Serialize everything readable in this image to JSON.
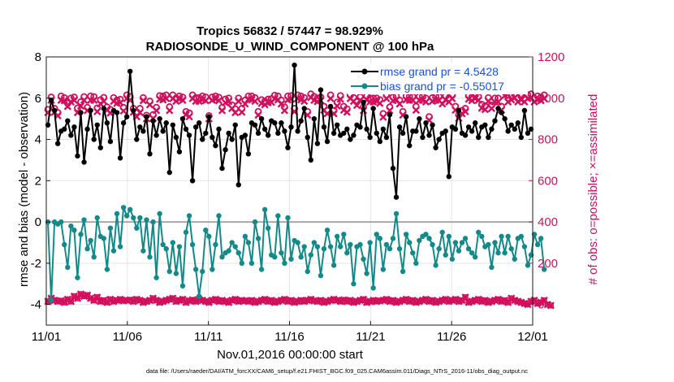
{
  "chart_data": {
    "type": "line",
    "title_line1": "Tropics 56832 / 57447 = 98.929%",
    "title_line2": "RADIOSONDE_U_WIND_COMPONENT @ 100 hPa",
    "xlabel": "Nov.01,2016 00:00:00 start",
    "ylabel_left": "rmse and bias (model - observation)",
    "ylabel_right": "# of obs: o=possible; ×=assimilated",
    "footer": "data file: /Users/raeder/DAI/ATM_forcXX/CAM6_setup/f.e21.FHIST_BGC.f09_025.CAM6assim.011/Diags_NTrS_2016-11/obs_diag_output.nc",
    "x_range": [
      0,
      30
    ],
    "xticks": [
      0,
      5,
      10,
      15,
      20,
      25,
      30
    ],
    "xtick_labels": [
      "11/01",
      "11/06",
      "11/11",
      "11/16",
      "11/21",
      "11/26",
      "12/01"
    ],
    "ylim_left": [
      -5,
      8
    ],
    "yticks_left": [
      -4,
      -2,
      0,
      2,
      4,
      6,
      8
    ],
    "ytick_labels_left": [
      "-4",
      "-2",
      "0",
      "2",
      "4",
      "6",
      "8"
    ],
    "ylim_right": [
      -100,
      1200
    ],
    "yticks_right": [
      0,
      200,
      400,
      600,
      800,
      1000,
      1200
    ],
    "ytick_labels_right": [
      "0",
      "200",
      "400",
      "600",
      "800",
      "1000",
      "1200"
    ],
    "legend": {
      "position": "top-right",
      "rmse": "rmse grand pr = 4.5428",
      "bias": "bias grand pr = -0.55017"
    },
    "colors": {
      "rmse": "#000000",
      "bias": "#138a8a",
      "obs": "#d10f5d",
      "zero_line": "#a8a8a8",
      "legend_text": "#1a4fe0"
    },
    "rmse": [
      4.7,
      5.9,
      5.4,
      3.8,
      4.4,
      4.5,
      4.9,
      4.2,
      4.6,
      3.2,
      5.3,
      2.9,
      4.5,
      5.4,
      4.0,
      4.7,
      3.6,
      5.5,
      4.8,
      3.9,
      5.4,
      5.3,
      3.1,
      4.8,
      5.1,
      7.3,
      5.4,
      4.0,
      4.6,
      4.4,
      5.1,
      3.3,
      4.9,
      4.2,
      5.0,
      4.4,
      4.8,
      2.4,
      4.7,
      4.1,
      3.4,
      5.0,
      4.5,
      4.2,
      2.0,
      4.6,
      4.8,
      4.0,
      4.3,
      5.1,
      4.1,
      3.7,
      4.5,
      2.6,
      3.5,
      4.3,
      4.0,
      4.7,
      1.8,
      4.1,
      4.2,
      3.3,
      4.8,
      4.7,
      4.3,
      5.0,
      4.5,
      4.2,
      4.9,
      4.8,
      4.3,
      4.8,
      4.4,
      3.6,
      4.6,
      7.6,
      4.4,
      4.9,
      5.5,
      4.1,
      3.0,
      5.0,
      3.8,
      6.4,
      4.6,
      3.9,
      5.6,
      4.3,
      4.7,
      4.2,
      4.3,
      4.5,
      4.0,
      4.2,
      4.7,
      4.6,
      5.8,
      4.5,
      4.1,
      5.5,
      4.3,
      3.9,
      4.5,
      4.1,
      5.2,
      2.6,
      1.2,
      4.6,
      4.3,
      5.1,
      3.7,
      4.4,
      4.4,
      5.0,
      4.1,
      4.8,
      4.2,
      4.7,
      3.6,
      4.0,
      4.3,
      4.4,
      2.2,
      4.6,
      4.5,
      5.4,
      4.3,
      4.2,
      4.6,
      4.4,
      4.8,
      4.1,
      4.6,
      4.7,
      4.1,
      4.5,
      4.9,
      5.5,
      5.3,
      5.0,
      4.4,
      4.7,
      4.5,
      4.8,
      4.1,
      5.4,
      4.3,
      4.5
    ],
    "bias": [
      0.0,
      -3.8,
      0.0,
      -0.1,
      0.0,
      -1.1,
      -2.2,
      -0.2,
      -0.4,
      -2.7,
      -0.6,
      0.1,
      -1.3,
      -0.9,
      -1.7,
      0.2,
      -0.7,
      -0.8,
      -2.3,
      -0.3,
      -1.4,
      0.4,
      -1.2,
      0.7,
      0.3,
      0.6,
      0.2,
      -0.3,
      0.2,
      -1.4,
      0.1,
      -1.7,
      0.0,
      -2.7,
      0.4,
      -1.1,
      -1.3,
      -2.4,
      -1.0,
      -2.5,
      -1.2,
      -3.1,
      -0.5,
      0.3,
      -1.1,
      -2.3,
      -3.6,
      -2.4,
      -0.4,
      -0.7,
      -2.3,
      -1.1,
      0.3,
      -1.7,
      -1.5,
      -1.4,
      -1.0,
      -1.2,
      -1.5,
      -2.0,
      -0.7,
      -1.0,
      -2.0,
      0.0,
      -0.8,
      -2.3,
      0.6,
      -0.3,
      -1.6,
      -1.7,
      0.3,
      -1.5,
      -2.0,
      0.2,
      -1.8,
      -0.9,
      -1.0,
      -1.7,
      -1.2,
      -2.4,
      -1.6,
      -1.0,
      -1.2,
      -2.6,
      -1.3,
      -0.4,
      -1.2,
      -2.1,
      -0.7,
      -1.2,
      -0.6,
      -1.5,
      -1.1,
      -3.0,
      -1.2,
      -1.1,
      -1.8,
      -2.5,
      -1.0,
      -3.2,
      -0.6,
      -0.8,
      -2.3,
      -1.1,
      -1.3,
      -0.8,
      0.4,
      -1.3,
      -2.4,
      -0.6,
      -1.0,
      -1.5,
      -2.0,
      -0.9,
      -0.7,
      -0.6,
      -0.8,
      -1.1,
      -2.1,
      -1.3,
      -0.5,
      -1.6,
      -0.7,
      -1.8,
      -1.0,
      -1.4,
      -1.0,
      -0.8,
      -1.3,
      -1.5,
      -1.7,
      -0.5,
      -0.7,
      -1.2,
      -1.1,
      -2.2,
      -1.0,
      -1.5,
      -0.7,
      -1.5,
      -0.7,
      -1.3,
      -1.8,
      -0.8,
      -0.7,
      -1.2,
      -2.1,
      -1.6,
      -0.6,
      -1.1,
      -0.8,
      -2.3
    ],
    "obs_possible": [
      945,
      1005,
      950,
      930,
      1010,
      1002,
      975,
      1000,
      1005,
      952,
      982,
      1007,
      955,
      1010,
      1007,
      952,
      992,
      1003,
      957,
      945,
      1002,
      990,
      994,
      955,
      1015,
      1008,
      950,
      933,
      950,
      1002,
      917,
      985,
      920,
      955,
      1012,
      1010,
      1015,
      958,
      1015,
      1000,
      1010,
      1005,
      935,
      928,
      1015,
      1002,
      1002,
      1010,
      1005,
      915,
      1005,
      1010,
      1004,
      955,
      995,
      1000,
      967,
      948,
      1000,
      950,
      990,
      1010,
      1010,
      1002,
      935,
      992,
      985,
      995,
      997,
      1014,
      1010,
      990,
      957,
      1010,
      1012,
      950,
      1015,
      1010,
      1002,
      935,
      1020,
      1008,
      1000,
      1005,
      960,
      940,
      1015,
      940,
      980,
      1012,
      960,
      948,
      1015,
      1003,
      982,
      1006,
      957,
      1010,
      1000,
      1000,
      1000,
      992,
      925,
      1015,
      957,
      1005,
      1010,
      990,
      935,
      1010,
      1008,
      1007,
      960,
      1008,
      1008,
      1000,
      910,
      1002,
      1008,
      1007,
      990,
      1010,
      1000,
      1015,
      960,
      920,
      940,
      950,
      1012,
      1005,
      1015,
      1007,
      970,
      962,
      1002,
      967,
      1000,
      1000,
      960,
      1030,
      1000,
      1010,
      1020,
      1000,
      1010,
      1000,
      1015,
      1020,
      1000,
      1010,
      1005,
      1015
    ],
    "obs_assimilated": [
      930,
      990,
      932,
      915,
      990,
      988,
      960,
      982,
      990,
      930,
      962,
      990,
      940,
      990,
      990,
      935,
      972,
      985,
      942,
      928,
      985,
      975,
      978,
      938,
      998,
      990,
      932,
      910,
      930,
      988,
      900,
      968,
      902,
      940,
      995,
      992,
      998,
      940,
      998,
      985,
      995,
      990,
      920,
      910,
      998,
      985,
      985,
      992,
      988,
      900,
      990,
      995,
      988,
      940,
      978,
      984,
      950,
      930,
      985,
      932,
      972,
      995,
      992,
      985,
      918,
      975,
      968,
      978,
      980,
      998,
      992,
      972,
      940,
      992,
      995,
      935,
      998,
      992,
      985,
      918,
      1003,
      990,
      983,
      988,
      942,
      925,
      998,
      925,
      962,
      995,
      942,
      932,
      998,
      985,
      965,
      990,
      940,
      992,
      982,
      982,
      985,
      975,
      908,
      998,
      940,
      988,
      992,
      972,
      918,
      992,
      990,
      990,
      942,
      990,
      990,
      982,
      893,
      985,
      990,
      990,
      972,
      992,
      982,
      998,
      942,
      903,
      925,
      935,
      995,
      988,
      998,
      990,
      952,
      945,
      985,
      950,
      982,
      982,
      942,
      1012,
      982,
      992,
      1002,
      982,
      992,
      982,
      998,
      1002,
      982,
      992,
      988,
      998
    ],
    "obs_low_possible": [
      15,
      30,
      20,
      15,
      18,
      10,
      25,
      15,
      40,
      30,
      50,
      40,
      45,
      30,
      20,
      35,
      15,
      20,
      10,
      25,
      15,
      20,
      25,
      18,
      20,
      22,
      15,
      25,
      20,
      10,
      15,
      20,
      30,
      20,
      10,
      15,
      20,
      25,
      30,
      15,
      20,
      25,
      10,
      18,
      22,
      15,
      25,
      20,
      15,
      10,
      20,
      25,
      15,
      20,
      15,
      10,
      20,
      25,
      15,
      20,
      18,
      15,
      20,
      10,
      15,
      20,
      25,
      15,
      20,
      10,
      15,
      20,
      25,
      15,
      20,
      10,
      15,
      20,
      15,
      20,
      25,
      18,
      15,
      20,
      10,
      15,
      20,
      25,
      20,
      15,
      22,
      15,
      20,
      10,
      15,
      20,
      25,
      10,
      15,
      20,
      15,
      18,
      20,
      25,
      15,
      20,
      10,
      15,
      20,
      25,
      15,
      20,
      10,
      15,
      20,
      25,
      15,
      20,
      10,
      15,
      20,
      25,
      15,
      20,
      25,
      15,
      20,
      35,
      10,
      15,
      20,
      25,
      15,
      20,
      10,
      15,
      20,
      25,
      15,
      20,
      10,
      30,
      20,
      15,
      10,
      5,
      0,
      15,
      20,
      5,
      10,
      20,
      0,
      -5
    ]
  }
}
